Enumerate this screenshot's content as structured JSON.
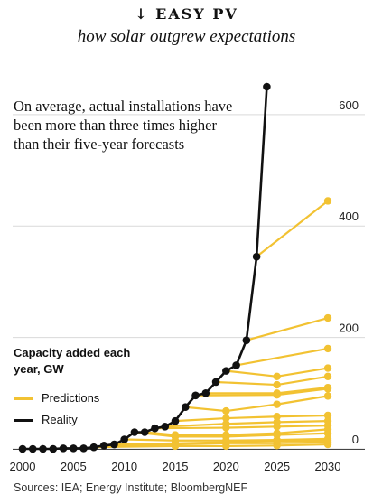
{
  "header": {
    "title": "↓ EASY PV",
    "subtitle": "how solar outgrew expectations"
  },
  "annotation": "On average, actual installations have been more than three times higher than their five-year forecasts",
  "legend": {
    "title": "Capacity added each year, GW",
    "items": [
      {
        "label": "Predictions",
        "color": "#f2c232"
      },
      {
        "label": "Reality",
        "color": "#111111"
      }
    ]
  },
  "source": "Sources: IEA; Energy Institute; BloombergNEF",
  "colors": {
    "predictions": "#f2c232",
    "reality": "#111111",
    "grid": "#d9d9d9"
  },
  "chart_data": {
    "type": "line",
    "xlim": [
      2000,
      2030
    ],
    "ylim": [
      0,
      660
    ],
    "xticks": [
      2000,
      2005,
      2010,
      2015,
      2020,
      2025,
      2030
    ],
    "yticks": [
      0,
      200,
      400,
      600
    ],
    "ylabel": "GW",
    "grid": "horizontal",
    "series": [
      {
        "name": "Reality",
        "x": [
          2000,
          2001,
          2002,
          2003,
          2004,
          2005,
          2006,
          2007,
          2008,
          2009,
          2010,
          2011,
          2012,
          2013,
          2014,
          2015,
          2016,
          2017,
          2018,
          2019,
          2020,
          2021,
          2022,
          2023,
          2024
        ],
        "values": [
          0,
          0,
          0,
          0,
          1,
          1,
          1,
          3,
          6,
          8,
          17,
          30,
          30,
          37,
          40,
          50,
          75,
          96,
          100,
          120,
          140,
          150,
          195,
          345,
          650
        ]
      }
    ],
    "predictions": [
      {
        "x": [
          2023,
          2030
        ],
        "values": [
          345,
          445
        ]
      },
      {
        "x": [
          2022,
          2030
        ],
        "values": [
          195,
          235
        ]
      },
      {
        "x": [
          2021,
          2030
        ],
        "values": [
          150,
          180
        ]
      },
      {
        "x": [
          2020,
          2025,
          2030
        ],
        "values": [
          140,
          130,
          145
        ]
      },
      {
        "x": [
          2019,
          2025,
          2030
        ],
        "values": [
          120,
          115,
          130
        ]
      },
      {
        "x": [
          2018,
          2025,
          2030
        ],
        "values": [
          100,
          100,
          110
        ]
      },
      {
        "x": [
          2017,
          2025,
          2030
        ],
        "values": [
          96,
          97,
          108
        ]
      },
      {
        "x": [
          2016,
          2020,
          2025,
          2030
        ],
        "values": [
          75,
          68,
          80,
          95
        ]
      },
      {
        "x": [
          2015,
          2020,
          2025,
          2030
        ],
        "values": [
          50,
          55,
          58,
          60
        ]
      },
      {
        "x": [
          2014,
          2020,
          2025,
          2030
        ],
        "values": [
          40,
          45,
          48,
          50
        ]
      },
      {
        "x": [
          2013,
          2020,
          2025,
          2030
        ],
        "values": [
          37,
          38,
          40,
          42
        ]
      },
      {
        "x": [
          2012,
          2015,
          2020,
          2025,
          2030
        ],
        "values": [
          30,
          25,
          25,
          28,
          35
        ]
      },
      {
        "x": [
          2011,
          2015,
          2020,
          2025,
          2030
        ],
        "values": [
          30,
          22,
          22,
          25,
          28
        ]
      },
      {
        "x": [
          2010,
          2015,
          2020,
          2025,
          2030
        ],
        "values": [
          17,
          15,
          15,
          16,
          18
        ]
      },
      {
        "x": [
          2009,
          2015,
          2020,
          2025,
          2030
        ],
        "values": [
          8,
          10,
          12,
          14,
          15
        ]
      },
      {
        "x": [
          2008,
          2015,
          2020,
          2025,
          2030
        ],
        "values": [
          6,
          8,
          10,
          10,
          12
        ]
      },
      {
        "x": [
          2007,
          2015,
          2020,
          2025,
          2030
        ],
        "values": [
          3,
          5,
          5,
          6,
          8
        ]
      }
    ]
  }
}
